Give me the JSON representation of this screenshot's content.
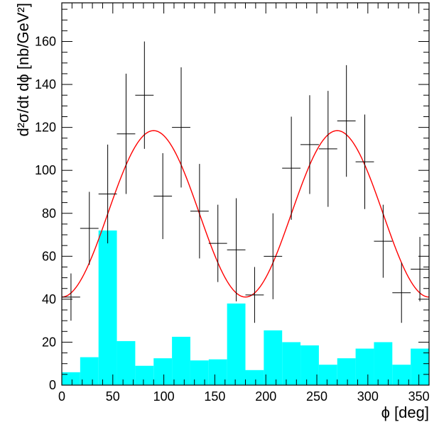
{
  "chart_data": {
    "type": "histogram",
    "xlabel": "ϕ [deg]",
    "ylabel": "d²σ/dt dϕ [nb/GeV²]",
    "xlim": [
      0,
      360
    ],
    "ylim": [
      0,
      178
    ],
    "x_ticks": [
      0,
      50,
      100,
      150,
      200,
      250,
      300,
      350
    ],
    "y_ticks": [
      0,
      20,
      40,
      60,
      80,
      100,
      120,
      140,
      160
    ],
    "grid": false,
    "bin_edges": [
      0,
      18,
      36,
      54,
      72,
      90,
      108,
      126,
      144,
      162,
      180,
      198,
      216,
      234,
      252,
      270,
      288,
      306,
      324,
      342,
      360
    ],
    "background_histogram": {
      "color": "#00ffff",
      "values": [
        6,
        13,
        72,
        20.5,
        9,
        12.5,
        22.5,
        11.5,
        12,
        38,
        7,
        25.5,
        20,
        18.5,
        9.5,
        12.5,
        17,
        20,
        9.5,
        17
      ]
    },
    "data_points": {
      "color": "#000000",
      "x": [
        9,
        27,
        45,
        63,
        81,
        99,
        117,
        135,
        153,
        171,
        189,
        207,
        225,
        243,
        261,
        279,
        297,
        315,
        333,
        351
      ],
      "y": [
        41,
        73,
        89,
        117,
        135,
        88,
        120,
        81,
        66,
        63,
        42,
        60,
        101,
        112,
        110,
        123,
        104,
        67,
        43,
        54
      ],
      "yerr": [
        11,
        17,
        23,
        28,
        25,
        20,
        28,
        22,
        18,
        24,
        13,
        20,
        24,
        23,
        27,
        26,
        22,
        17,
        14,
        15
      ]
    },
    "fit_curve": {
      "color": "#ff0000",
      "min_at": [
        0,
        180,
        360
      ],
      "max_at": [
        90,
        270
      ],
      "min_value": 41,
      "max_value": 118.5
    }
  }
}
